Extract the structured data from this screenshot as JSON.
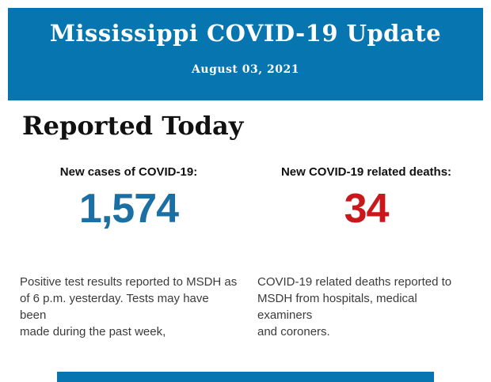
{
  "header": {
    "title": "Mississippi COVID-19 Update",
    "date": "August 03, 2021",
    "background_color": "#0775B0",
    "text_color": "#ffffff"
  },
  "main": {
    "heading": "Reported Today",
    "stats": [
      {
        "label": "New cases of COVID-19:",
        "value": "1,574",
        "value_color": "#1B6FA3",
        "description": "Positive test results reported to MSDH as\nof 6 p.m. yesterday. Tests may have been\nmade during the past week,"
      },
      {
        "label": "New COVID-19 related deaths:",
        "value": "34",
        "value_color": "#C9171C",
        "description": "COVID-19 related deaths reported to\nMSDH from hospitals, medical examiners\nand coroners."
      }
    ]
  },
  "footer": {
    "bar_color": "#0775B0"
  }
}
